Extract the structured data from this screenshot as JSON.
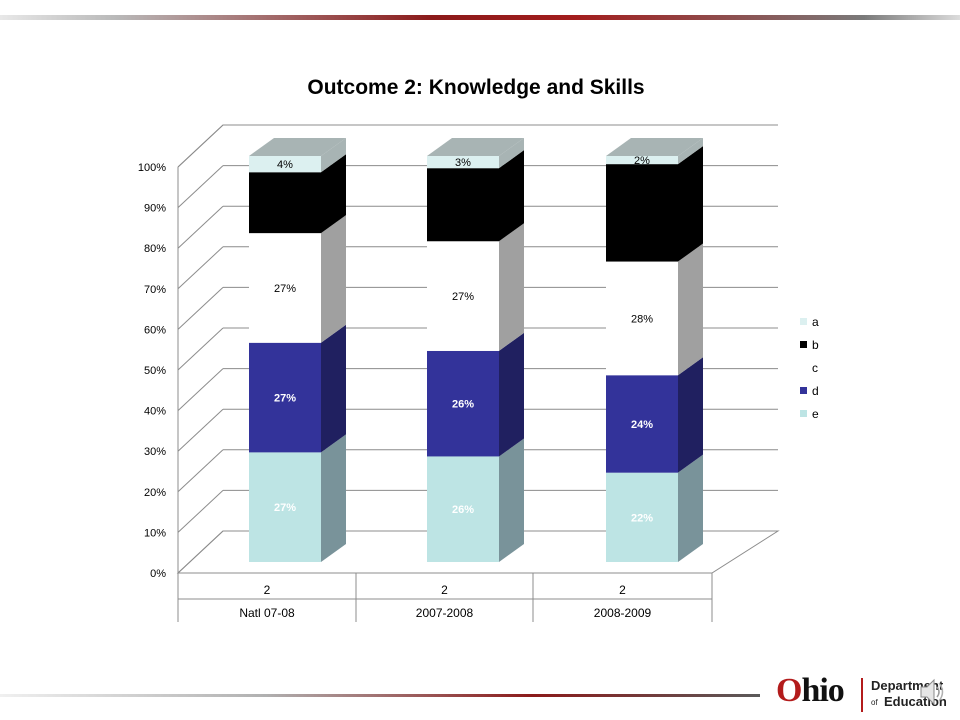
{
  "chart_data": {
    "type": "bar",
    "stacked": true,
    "percent_stacked": true,
    "three_d": true,
    "title": "Outcome 2: Knowledge and Skills",
    "categories": [
      "2",
      "2",
      "2"
    ],
    "group_labels": [
      "Natl 07-08",
      "2007-2008",
      "2008-2009"
    ],
    "ylim": [
      0,
      100
    ],
    "yticks": [
      "0%",
      "10%",
      "20%",
      "30%",
      "40%",
      "50%",
      "60%",
      "70%",
      "80%",
      "90%",
      "100%"
    ],
    "grid": true,
    "legend_position": "right",
    "series": [
      {
        "name": "e",
        "color": "#bde4e4",
        "values": [
          27,
          26,
          22
        ],
        "labels": [
          "27%",
          "26%",
          "22%"
        ]
      },
      {
        "name": "d",
        "color": "#33339a",
        "values": [
          27,
          26,
          24
        ],
        "labels": [
          "27%",
          "26%",
          "24%"
        ]
      },
      {
        "name": "c",
        "color": "#ffffff",
        "values": [
          27,
          27,
          28
        ],
        "labels": [
          "27%",
          "27%",
          "28%"
        ]
      },
      {
        "name": "b",
        "color": "#000000",
        "values": [
          15,
          18,
          24
        ],
        "labels": [
          "",
          "",
          ""
        ]
      },
      {
        "name": "a",
        "color": "#dcf0f0",
        "values": [
          4,
          3,
          2
        ],
        "labels": [
          "4%",
          "3%",
          "2%"
        ]
      }
    ],
    "legend_order": [
      "a",
      "b",
      "c",
      "d",
      "e"
    ]
  },
  "footer": {
    "logo_ohio": "hio",
    "logo_o": "O",
    "logo_dept": "Department",
    "logo_of": "of",
    "logo_edu": "Education"
  }
}
